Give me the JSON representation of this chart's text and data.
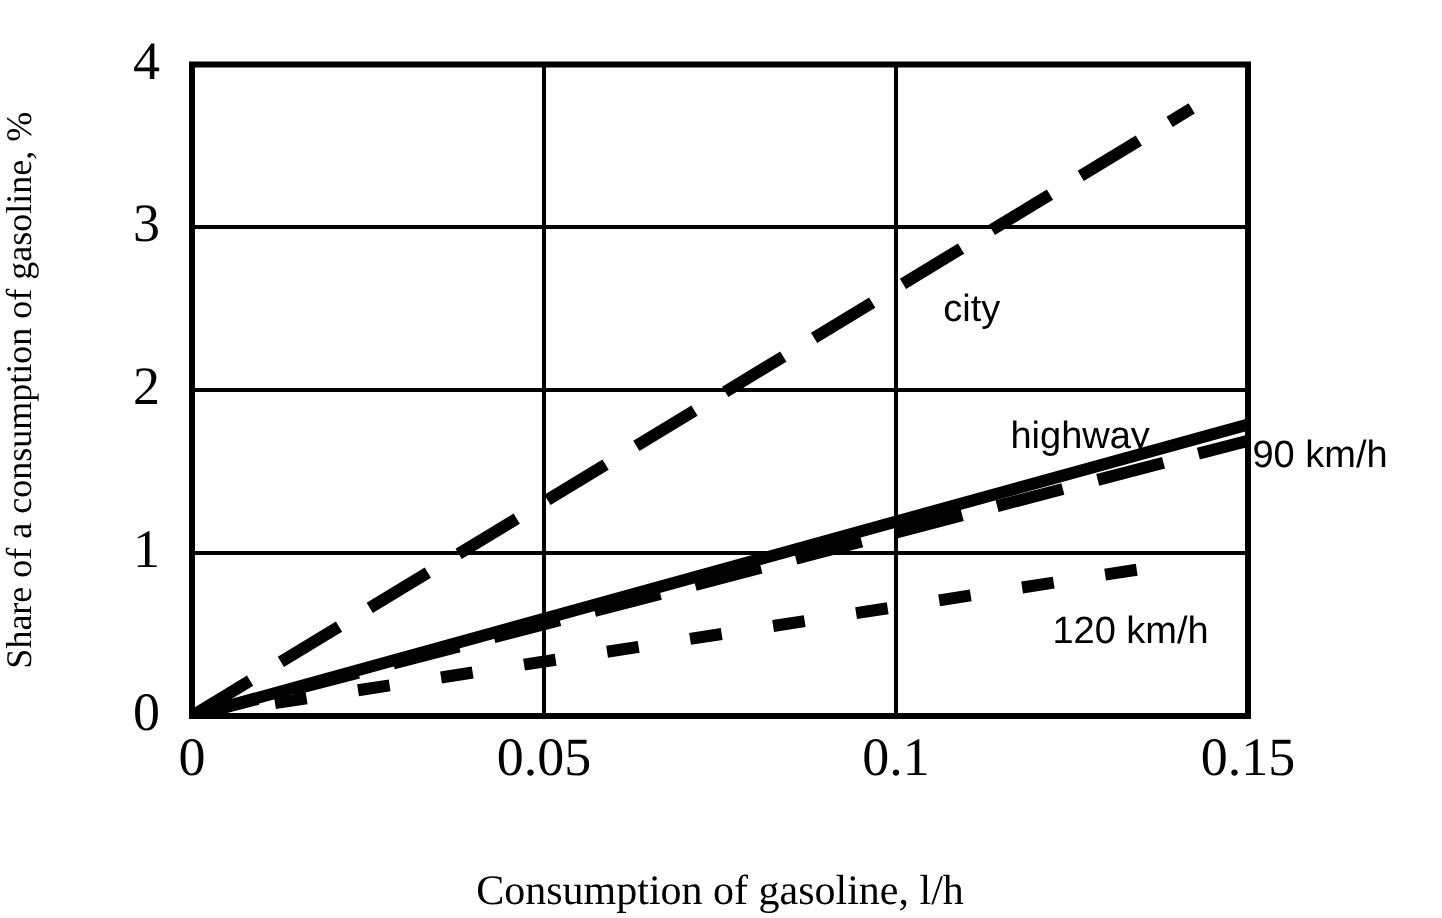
{
  "chart_data": {
    "type": "line",
    "xlabel": "Consumption of gasoline, l/h",
    "ylabel": "Share of a consumption of gasoline, %",
    "xlim": [
      0,
      0.15
    ],
    "ylim": [
      0,
      4
    ],
    "xticks": [
      0,
      0.05,
      0.1,
      0.15
    ],
    "yticks": [
      0,
      1,
      2,
      3,
      4
    ],
    "grid": true,
    "legend": false,
    "marker": "none",
    "series": [
      {
        "name": "city",
        "color": "#000000",
        "line_style": "dashed",
        "x": [
          0,
          0.142
        ],
        "values": [
          0,
          3.73
        ]
      },
      {
        "name": "highway",
        "color": "#000000",
        "line_style": "solid",
        "x": [
          0,
          0.15
        ],
        "values": [
          0,
          1.79
        ]
      },
      {
        "name": "90 km/h",
        "color": "#000000",
        "line_style": "dashed",
        "x": [
          0,
          0.15
        ],
        "values": [
          0,
          1.69
        ]
      },
      {
        "name": "120 km/h",
        "color": "#000000",
        "line_style": "dotted",
        "x": [
          0,
          0.139
        ],
        "values": [
          0,
          0.93
        ]
      }
    ]
  }
}
